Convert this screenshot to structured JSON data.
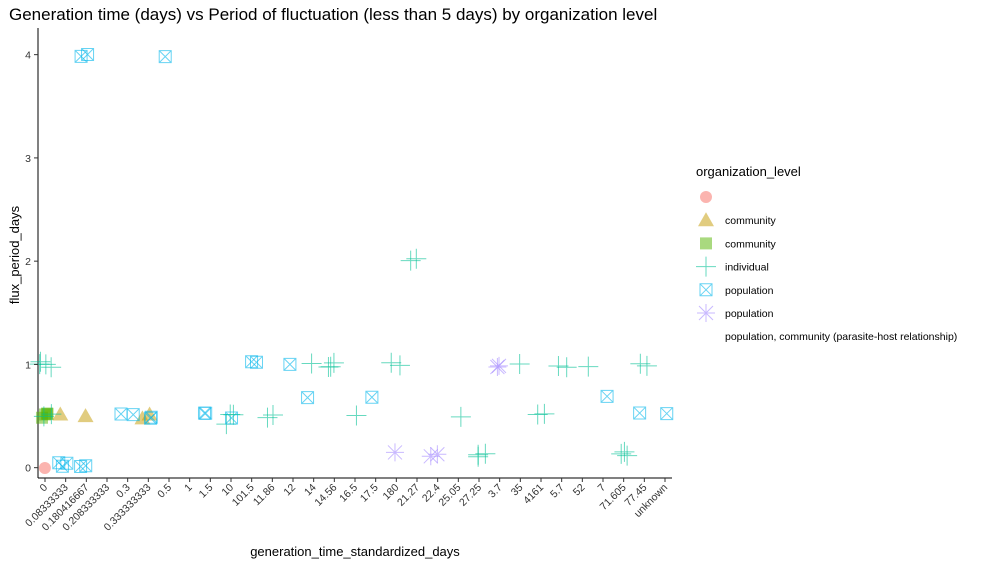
{
  "chart_data": {
    "type": "scatter",
    "title": "Generation time (days) vs Period of fluctuation (less than 5 days) by organization level",
    "xlabel": "generation_time_standardized_days",
    "ylabel": "flux_period_days",
    "categories": [
      "0",
      "0.08333333",
      "0.180416667",
      "0.208333333",
      "0.3",
      "0.333333333",
      "0.5",
      "1",
      "1.5",
      "10",
      "101.5",
      "11.86",
      "12",
      "14",
      "14.56",
      "16.5",
      "17.5",
      "180",
      "21.27",
      "22.4",
      "25.05",
      "27.25",
      "3.7",
      "35",
      "4161",
      "5.7",
      "52",
      "7",
      "71.605",
      "77.45",
      "unknown"
    ],
    "y_ticks": [
      0,
      1,
      2,
      3,
      4
    ],
    "ylim": [
      -0.1,
      4.2
    ],
    "legend": {
      "title": "organization_level",
      "position": "right",
      "entries": [
        {
          "label": "",
          "shape": "circle",
          "color": "#F8766D"
        },
        {
          "label": "community",
          "shape": "triangle",
          "color": "#C49A00"
        },
        {
          "label": "community",
          "shape": "square",
          "color": "#53B400"
        },
        {
          "label": "individual",
          "shape": "plus",
          "color": "#00C094"
        },
        {
          "label": "population",
          "shape": "boxcross",
          "color": "#00B6EB"
        },
        {
          "label": "population",
          "shape": "star",
          "color": "#A58AFF"
        },
        {
          "label": "population, community (parasite-host relationship)",
          "shape": "none",
          "color": "#FB61D7"
        }
      ]
    },
    "series": [
      {
        "legend_index": 0,
        "points": [
          {
            "x": "0",
            "y": 0
          }
        ]
      },
      {
        "legend_index": 1,
        "points": [
          {
            "x": "0.08333333",
            "y": 0.5
          },
          {
            "x": "0.180416667",
            "y": 0.5
          },
          {
            "x": "0.333333333",
            "y": 0.5
          },
          {
            "x": "0.333333333",
            "y": 0.51
          }
        ]
      },
      {
        "legend_index": 2,
        "points": [
          {
            "x": "0",
            "y": 0.5
          },
          {
            "x": "0",
            "y": 0.5
          },
          {
            "x": "0",
            "y": 0.5
          },
          {
            "x": "0",
            "y": 0.5
          }
        ]
      },
      {
        "legend_index": 3,
        "points": [
          {
            "x": "0",
            "y": 1
          },
          {
            "x": "0",
            "y": 1
          },
          {
            "x": "0",
            "y": 1
          },
          {
            "x": "0",
            "y": 1
          },
          {
            "x": "0",
            "y": 0.5
          },
          {
            "x": "0",
            "y": 0.5
          },
          {
            "x": "10",
            "y": 0.5
          },
          {
            "x": "10",
            "y": 0.45
          },
          {
            "x": "10",
            "y": 0.5
          },
          {
            "x": "11.86",
            "y": 0.5
          },
          {
            "x": "11.86",
            "y": 0.5
          },
          {
            "x": "14",
            "y": 1
          },
          {
            "x": "14.56",
            "y": 1
          },
          {
            "x": "14.56",
            "y": 1
          },
          {
            "x": "14.56",
            "y": 1
          },
          {
            "x": "16.5",
            "y": 0.5
          },
          {
            "x": "180",
            "y": 1
          },
          {
            "x": "180",
            "y": 1
          },
          {
            "x": "21.27",
            "y": 2
          },
          {
            "x": "21.27",
            "y": 2
          },
          {
            "x": "25.05",
            "y": 0.5
          },
          {
            "x": "27.25",
            "y": 0.125
          },
          {
            "x": "27.25",
            "y": 0.125
          },
          {
            "x": "27.25",
            "y": 0.125
          },
          {
            "x": "35",
            "y": 1
          },
          {
            "x": "4161",
            "y": 0.5
          },
          {
            "x": "4161",
            "y": 0.5
          },
          {
            "x": "5.7",
            "y": 1
          },
          {
            "x": "5.7",
            "y": 1
          },
          {
            "x": "52",
            "y": 1
          },
          {
            "x": "71.605",
            "y": 0.125
          },
          {
            "x": "71.605",
            "y": 0.125
          },
          {
            "x": "71.605",
            "y": 0.125
          },
          {
            "x": "77.45",
            "y": 1
          },
          {
            "x": "77.45",
            "y": 1
          }
        ]
      },
      {
        "legend_index": 4,
        "points": [
          {
            "x": "0.08333333",
            "y": 0.04
          },
          {
            "x": "0.08333333",
            "y": 0.04
          },
          {
            "x": "0.08333333",
            "y": 0.04
          },
          {
            "x": "0.180416667",
            "y": 0.04
          },
          {
            "x": "0.180416667",
            "y": 0.04
          },
          {
            "x": "0.180416667",
            "y": 4
          },
          {
            "x": "0.180416667",
            "y": 4
          },
          {
            "x": "0.3",
            "y": 0.5
          },
          {
            "x": "0.3",
            "y": 0.5
          },
          {
            "x": "0.333333333",
            "y": 0.5
          },
          {
            "x": "0.333333333",
            "y": 0.5
          },
          {
            "x": "0.5",
            "y": 4
          },
          {
            "x": "1.5",
            "y": 0.5
          },
          {
            "x": "1.5",
            "y": 0.5
          },
          {
            "x": "10",
            "y": 0.5
          },
          {
            "x": "101.5",
            "y": 1
          },
          {
            "x": "101.5",
            "y": 1
          },
          {
            "x": "12",
            "y": 1
          },
          {
            "x": "14",
            "y": 0.67
          },
          {
            "x": "17.5",
            "y": 0.67
          },
          {
            "x": "7",
            "y": 0.67
          },
          {
            "x": "77.45",
            "y": 0.5
          },
          {
            "x": "unknown",
            "y": 0.5
          }
        ]
      },
      {
        "legend_index": 5,
        "points": [
          {
            "x": "180",
            "y": 0.125
          },
          {
            "x": "22.4",
            "y": 0.125
          },
          {
            "x": "22.4",
            "y": 0.125
          },
          {
            "x": "3.7",
            "y": 1
          },
          {
            "x": "3.7",
            "y": 1
          }
        ]
      }
    ]
  }
}
